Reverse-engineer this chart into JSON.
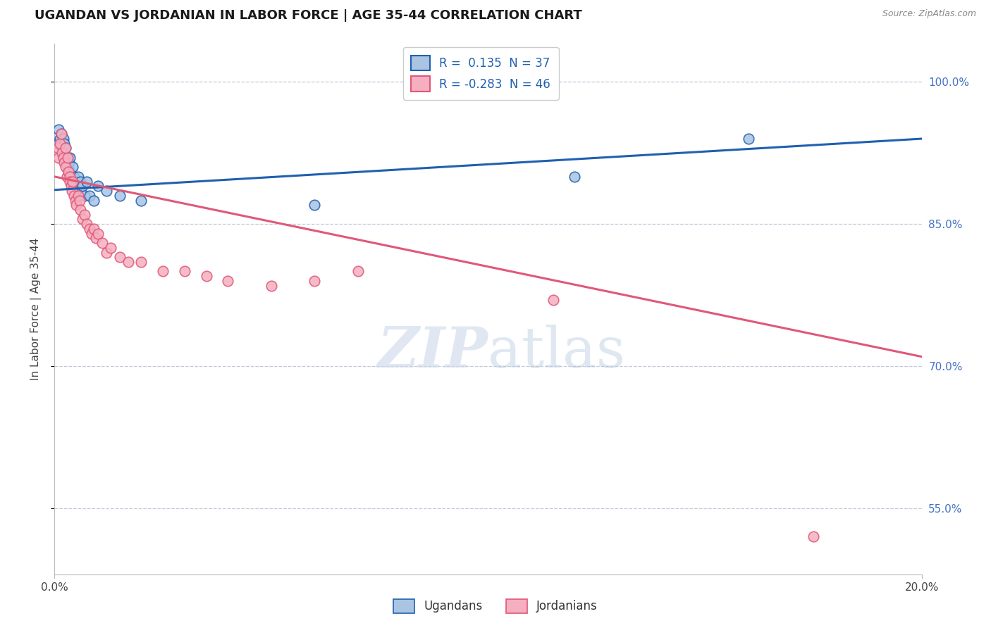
{
  "title": "UGANDAN VS JORDANIAN IN LABOR FORCE | AGE 35-44 CORRELATION CHART",
  "source": "Source: ZipAtlas.com",
  "ylabel": "In Labor Force | Age 35-44",
  "yticks": [
    0.55,
    0.7,
    0.85,
    1.0
  ],
  "ytick_labels": [
    "55.0%",
    "70.0%",
    "85.0%",
    "100.0%"
  ],
  "xlim": [
    0.0,
    0.2
  ],
  "ylim": [
    0.48,
    1.04
  ],
  "ugandan_R": 0.135,
  "ugandan_N": 37,
  "jordanian_R": -0.283,
  "jordanian_N": 46,
  "ugandan_color": "#aac4e2",
  "jordanian_color": "#f5afc0",
  "ugandan_line_color": "#2060b0",
  "jordanian_line_color": "#e05878",
  "legend_labels": [
    "Ugandans",
    "Jordanians"
  ],
  "ugandan_x": [
    0.0008,
    0.001,
    0.0012,
    0.0015,
    0.0018,
    0.002,
    0.002,
    0.0022,
    0.0025,
    0.0025,
    0.0028,
    0.003,
    0.003,
    0.0033,
    0.0035,
    0.0035,
    0.0038,
    0.004,
    0.0042,
    0.0045,
    0.0045,
    0.0048,
    0.005,
    0.0055,
    0.006,
    0.0065,
    0.007,
    0.0075,
    0.008,
    0.009,
    0.01,
    0.012,
    0.015,
    0.02,
    0.06,
    0.12,
    0.16
  ],
  "ugandan_y": [
    0.935,
    0.95,
    0.94,
    0.945,
    0.93,
    0.925,
    0.94,
    0.935,
    0.93,
    0.92,
    0.915,
    0.91,
    0.92,
    0.915,
    0.905,
    0.92,
    0.9,
    0.895,
    0.91,
    0.9,
    0.89,
    0.895,
    0.885,
    0.9,
    0.895,
    0.89,
    0.88,
    0.895,
    0.88,
    0.875,
    0.89,
    0.885,
    0.88,
    0.875,
    0.87,
    0.9,
    0.94
  ],
  "jordanian_x": [
    0.0008,
    0.001,
    0.0012,
    0.0015,
    0.0018,
    0.002,
    0.0022,
    0.0025,
    0.0025,
    0.0028,
    0.003,
    0.0032,
    0.0035,
    0.0035,
    0.0038,
    0.004,
    0.0042,
    0.0045,
    0.0048,
    0.005,
    0.0055,
    0.0058,
    0.006,
    0.0065,
    0.007,
    0.0075,
    0.008,
    0.0085,
    0.009,
    0.0095,
    0.01,
    0.011,
    0.012,
    0.013,
    0.015,
    0.017,
    0.02,
    0.025,
    0.03,
    0.035,
    0.04,
    0.05,
    0.06,
    0.07,
    0.115,
    0.175
  ],
  "jordanian_y": [
    0.93,
    0.92,
    0.935,
    0.945,
    0.925,
    0.92,
    0.915,
    0.91,
    0.93,
    0.9,
    0.92,
    0.905,
    0.9,
    0.895,
    0.89,
    0.885,
    0.895,
    0.88,
    0.875,
    0.87,
    0.88,
    0.875,
    0.865,
    0.855,
    0.86,
    0.85,
    0.845,
    0.84,
    0.845,
    0.835,
    0.84,
    0.83,
    0.82,
    0.825,
    0.815,
    0.81,
    0.81,
    0.8,
    0.8,
    0.795,
    0.79,
    0.785,
    0.79,
    0.8,
    0.77,
    0.52
  ],
  "ug_trendline_x": [
    0.0,
    0.2
  ],
  "ug_trendline_y": [
    0.886,
    0.94
  ],
  "jo_trendline_x": [
    0.0,
    0.2
  ],
  "jo_trendline_y": [
    0.9,
    0.71
  ]
}
